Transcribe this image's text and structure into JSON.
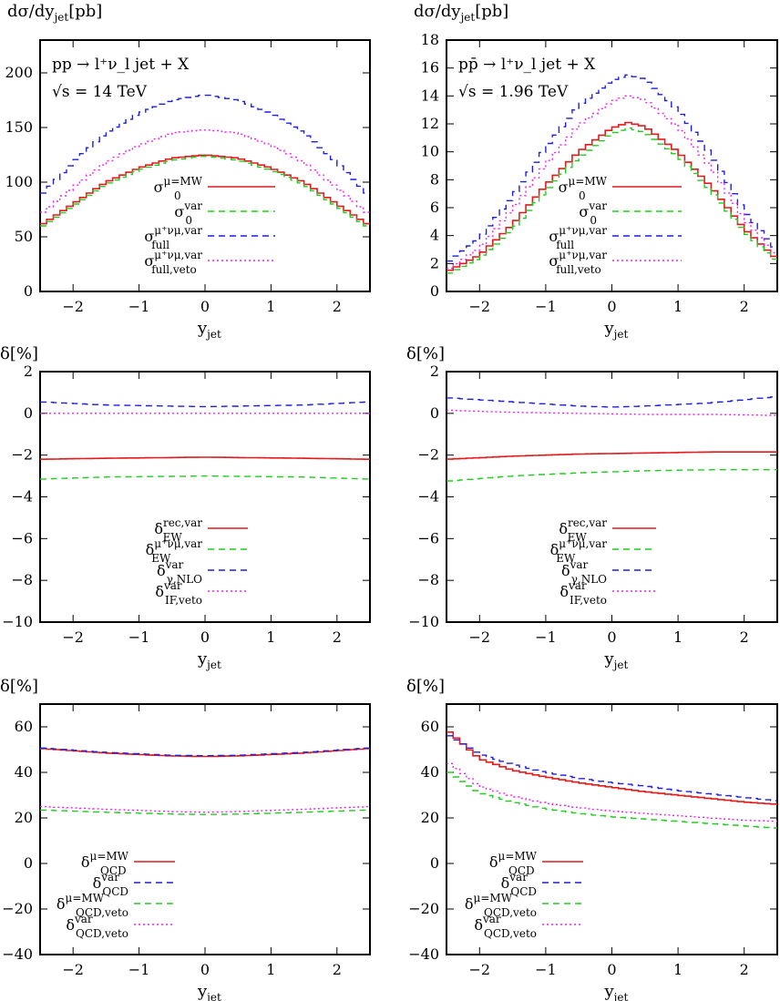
{
  "chart_data": [
    {
      "type": "line",
      "panel": "top-left",
      "ylabel": "dσ/dy_jet[pb]",
      "xlabel": "y_jet",
      "xlim": [
        -2.5,
        2.5
      ],
      "ylim": [
        0,
        230
      ],
      "xticks": [
        -2,
        -1,
        0,
        1,
        2
      ],
      "yticks": [
        0,
        50,
        100,
        150,
        200
      ],
      "annotations": [
        "pp → l⁺ν_l jet + X",
        "√s = 14 TeV"
      ],
      "legend_position": "center",
      "series": [
        {
          "name": "σ_0^{μ=M_W}",
          "style": "solid",
          "color": "#e41a1c",
          "x": [
            -2.5,
            -2,
            -1.5,
            -1,
            -0.5,
            0,
            0.5,
            1,
            1.5,
            2,
            2.5
          ],
          "y": [
            60,
            80,
            100,
            113,
            122,
            125,
            122,
            113,
            100,
            80,
            60
          ]
        },
        {
          "name": "σ_0^{var}",
          "style": "dashed",
          "color": "#22cc22",
          "x": [
            -2.5,
            -2,
            -1.5,
            -1,
            -0.5,
            0,
            0.5,
            1,
            1.5,
            2,
            2.5
          ],
          "y": [
            58,
            78,
            98,
            111,
            120,
            124,
            120,
            111,
            98,
            78,
            58
          ]
        },
        {
          "name": "σ_full^{μ⁺ν_μ,var}",
          "style": "dashed",
          "color": "#1f1fdd",
          "x": [
            -2.5,
            -2,
            -1.5,
            -1,
            -0.5,
            0,
            0.5,
            1,
            1.5,
            2,
            2.5
          ],
          "y": [
            87,
            118,
            145,
            163,
            175,
            180,
            175,
            163,
            145,
            118,
            87
          ]
        },
        {
          "name": "σ_full,veto^{μ⁺ν_μ,var}",
          "style": "dotted",
          "color": "#ee22ee",
          "x": [
            -2.5,
            -2,
            -1.5,
            -1,
            -0.5,
            0,
            0.5,
            1,
            1.5,
            2,
            2.5
          ],
          "y": [
            70,
            95,
            118,
            134,
            145,
            148,
            145,
            134,
            118,
            95,
            70
          ]
        }
      ]
    },
    {
      "type": "line",
      "panel": "top-right",
      "ylabel": "dσ/dy_jet[pb]",
      "xlabel": "y_jet",
      "xlim": [
        -2.5,
        2.5
      ],
      "ylim": [
        0,
        18
      ],
      "xticks": [
        -2,
        -1,
        0,
        1,
        2
      ],
      "yticks": [
        0,
        2,
        4,
        6,
        8,
        10,
        12,
        14,
        16,
        18
      ],
      "annotations": [
        "pp̄ → l⁺ν_l jet + X",
        "√s = 1.96 TeV"
      ],
      "legend_position": "bottom-center",
      "series": [
        {
          "name": "σ_0^{μ=M_W}",
          "style": "solid",
          "color": "#e41a1c",
          "x": [
            -2.5,
            -2,
            -1.5,
            -1,
            -0.5,
            0,
            0.25,
            0.5,
            1,
            1.5,
            2,
            2.5
          ],
          "y": [
            1.4,
            2.6,
            4.8,
            7.6,
            10.0,
            11.7,
            12.1,
            11.8,
            10.0,
            7.5,
            4.5,
            2.3
          ]
        },
        {
          "name": "σ_0^{var}",
          "style": "dashed",
          "color": "#22cc22",
          "x": [
            -2.5,
            -2,
            -1.5,
            -1,
            -0.5,
            0,
            0.25,
            0.5,
            1,
            1.5,
            2,
            2.5
          ],
          "y": [
            1.2,
            2.4,
            4.4,
            7.2,
            9.6,
            11.3,
            11.7,
            11.4,
            9.7,
            7.2,
            4.3,
            2.1
          ]
        },
        {
          "name": "σ_full^{μ⁺ν_μ,var}",
          "style": "dashed",
          "color": "#1f1fdd",
          "x": [
            -2.5,
            -2,
            -1.5,
            -1,
            -0.5,
            0,
            0.25,
            0.5,
            1,
            1.5,
            2,
            2.5
          ],
          "y": [
            2.0,
            3.8,
            6.8,
            10.3,
            13.3,
            15.1,
            15.5,
            15.2,
            13.0,
            9.8,
            5.8,
            2.9
          ]
        },
        {
          "name": "σ_full,veto^{μ⁺ν_μ,var}",
          "style": "dotted",
          "color": "#ee22ee",
          "x": [
            -2.5,
            -2,
            -1.5,
            -1,
            -0.5,
            0,
            0.25,
            0.5,
            1,
            1.5,
            2,
            2.5
          ],
          "y": [
            1.5,
            3.1,
            5.9,
            9.1,
            11.9,
            13.6,
            14.0,
            13.7,
            11.8,
            8.9,
            5.2,
            2.5
          ]
        }
      ]
    },
    {
      "type": "line",
      "panel": "middle-left",
      "ylabel": "δ[%]",
      "xlabel": "y_jet",
      "xlim": [
        -2.5,
        2.5
      ],
      "ylim": [
        -10,
        2
      ],
      "xticks": [
        -2,
        -1,
        0,
        1,
        2
      ],
      "yticks": [
        -10,
        -8,
        -6,
        -4,
        -2,
        0,
        2
      ],
      "legend_position": "bottom-center",
      "series": [
        {
          "name": "δ_EW^{rec,var}",
          "style": "solid",
          "color": "#e41a1c",
          "x": [
            -2.5,
            -1.5,
            0,
            1.5,
            2.5
          ],
          "y": [
            -2.2,
            -2.15,
            -2.1,
            -2.15,
            -2.2
          ]
        },
        {
          "name": "δ_EW^{μ⁺ν_μ,var}",
          "style": "dashed",
          "color": "#22cc22",
          "x": [
            -2.5,
            -1.5,
            0,
            1.5,
            2.5
          ],
          "y": [
            -3.15,
            -3.05,
            -3.0,
            -3.05,
            -3.15
          ]
        },
        {
          "name": "δ_γ,NLO^{var}",
          "style": "dashed",
          "color": "#1f1fdd",
          "x": [
            -2.5,
            -1.5,
            0,
            1.5,
            2.5
          ],
          "y": [
            0.55,
            0.4,
            0.32,
            0.4,
            0.55
          ]
        },
        {
          "name": "δ_IF,veto^{var}",
          "style": "dotted",
          "color": "#ee22ee",
          "x": [
            -2.5,
            -1.5,
            0,
            1.5,
            2.5
          ],
          "y": [
            0.0,
            0.0,
            0.0,
            0.0,
            0.0
          ]
        }
      ]
    },
    {
      "type": "line",
      "panel": "middle-right",
      "ylabel": "δ[%]",
      "xlabel": "y_jet",
      "xlim": [
        -2.5,
        2.5
      ],
      "ylim": [
        -10,
        2
      ],
      "xticks": [
        -2,
        -1,
        0,
        1,
        2
      ],
      "yticks": [
        -10,
        -8,
        -6,
        -4,
        -2,
        0,
        2
      ],
      "legend_position": "bottom-center",
      "series": [
        {
          "name": "δ_EW^{rec,var}",
          "style": "solid",
          "color": "#e41a1c",
          "x": [
            -2.5,
            -1.5,
            -0.5,
            0.5,
            1.5,
            2.5
          ],
          "y": [
            -2.2,
            -2.05,
            -1.95,
            -1.9,
            -1.85,
            -1.85
          ]
        },
        {
          "name": "δ_EW^{μ⁺ν_μ,var}",
          "style": "dashed",
          "color": "#22cc22",
          "x": [
            -2.5,
            -1.5,
            -0.5,
            0.5,
            1.5,
            2.5
          ],
          "y": [
            -3.25,
            -3.0,
            -2.85,
            -2.75,
            -2.7,
            -2.7
          ]
        },
        {
          "name": "δ_γ,NLO^{var}",
          "style": "dashed",
          "color": "#1f1fdd",
          "x": [
            -2.5,
            -1.5,
            -0.5,
            0,
            0.5,
            1.5,
            2.5
          ],
          "y": [
            0.75,
            0.55,
            0.35,
            0.3,
            0.35,
            0.5,
            0.8
          ]
        },
        {
          "name": "δ_IF,veto^{var}",
          "style": "dotted",
          "color": "#ee22ee",
          "x": [
            -2.5,
            -1.5,
            -0.5,
            0.5,
            1.5,
            2.5
          ],
          "y": [
            0.15,
            0.05,
            0.0,
            -0.05,
            -0.05,
            -0.1
          ]
        }
      ]
    },
    {
      "type": "line",
      "panel": "bottom-left",
      "ylabel": "δ[%]",
      "xlabel": "y_jet",
      "xlim": [
        -2.5,
        2.5
      ],
      "ylim": [
        -40,
        70
      ],
      "xticks": [
        -2,
        -1,
        0,
        1,
        2
      ],
      "yticks": [
        -40,
        -20,
        0,
        20,
        40,
        60
      ],
      "legend_position": "bottom-left",
      "series": [
        {
          "name": "δ_QCD^{μ=M_W}",
          "style": "solid",
          "color": "#e41a1c",
          "x": [
            -2.5,
            -1.5,
            -0.5,
            0,
            0.5,
            1.5,
            2.5
          ],
          "y": [
            50.5,
            48.5,
            47.2,
            47.0,
            47.2,
            48.5,
            50.5
          ]
        },
        {
          "name": "δ_QCD^{var}",
          "style": "dashed",
          "color": "#1f1fdd",
          "x": [
            -2.5,
            -1.5,
            -0.5,
            0,
            0.5,
            1.5,
            2.5
          ],
          "y": [
            50.8,
            48.8,
            47.5,
            47.3,
            47.5,
            48.8,
            50.8
          ]
        },
        {
          "name": "δ_QCD,veto^{μ=M_W}",
          "style": "dashed",
          "color": "#22cc22",
          "x": [
            -2.5,
            -1.5,
            -0.5,
            0,
            0.5,
            1.5,
            2.5
          ],
          "y": [
            23.5,
            22.5,
            21.7,
            21.5,
            21.7,
            22.5,
            23.5
          ]
        },
        {
          "name": "δ_QCD,veto^{var}",
          "style": "dotted",
          "color": "#ee22ee",
          "x": [
            -2.5,
            -1.5,
            -0.5,
            0,
            0.5,
            1.5,
            2.5
          ],
          "y": [
            25.0,
            23.8,
            22.8,
            22.5,
            22.8,
            23.8,
            25.0
          ]
        }
      ]
    },
    {
      "type": "line",
      "panel": "bottom-right",
      "ylabel": "δ[%]",
      "xlabel": "y_jet",
      "xlim": [
        -2.5,
        2.5
      ],
      "ylim": [
        -40,
        70
      ],
      "xticks": [
        -2,
        -1,
        0,
        1,
        2
      ],
      "yticks": [
        -40,
        -20,
        0,
        20,
        40,
        60
      ],
      "legend_position": "bottom-left",
      "series": [
        {
          "name": "δ_QCD^{μ=M_W}",
          "style": "solid",
          "color": "#e41a1c",
          "x": [
            -2.5,
            -2,
            -1.5,
            -1,
            -0.5,
            0,
            0.5,
            1,
            1.5,
            2,
            2.5
          ],
          "y": [
            59,
            46,
            41,
            38,
            35.5,
            33.5,
            31.5,
            30,
            28.5,
            27,
            26
          ]
        },
        {
          "name": "δ_QCD^{var}",
          "style": "dashed",
          "color": "#1f1fdd",
          "x": [
            -2.5,
            -2,
            -1.5,
            -1,
            -0.5,
            0,
            0.5,
            1,
            1.5,
            2,
            2.5
          ],
          "y": [
            57,
            48,
            43.5,
            40,
            37.5,
            35.5,
            34,
            32,
            30.5,
            29,
            27.5
          ]
        },
        {
          "name": "δ_QCD,veto^{μ=M_W}",
          "style": "dashed",
          "color": "#22cc22",
          "x": [
            -2.5,
            -2,
            -1.5,
            -1,
            -0.5,
            0,
            0.5,
            1,
            1.5,
            2,
            2.5
          ],
          "y": [
            41,
            31,
            27,
            24,
            22,
            20.5,
            19.5,
            18.5,
            17.5,
            16.5,
            15.5
          ]
        },
        {
          "name": "δ_QCD,veto^{var}",
          "style": "dotted",
          "color": "#ee22ee",
          "x": [
            -2.5,
            -2,
            -1.5,
            -1,
            -0.5,
            0,
            0.5,
            1,
            1.5,
            2,
            2.5
          ],
          "y": [
            45,
            34,
            29.5,
            26.5,
            24.5,
            23,
            22,
            21,
            20,
            19,
            18.5
          ]
        }
      ]
    }
  ]
}
